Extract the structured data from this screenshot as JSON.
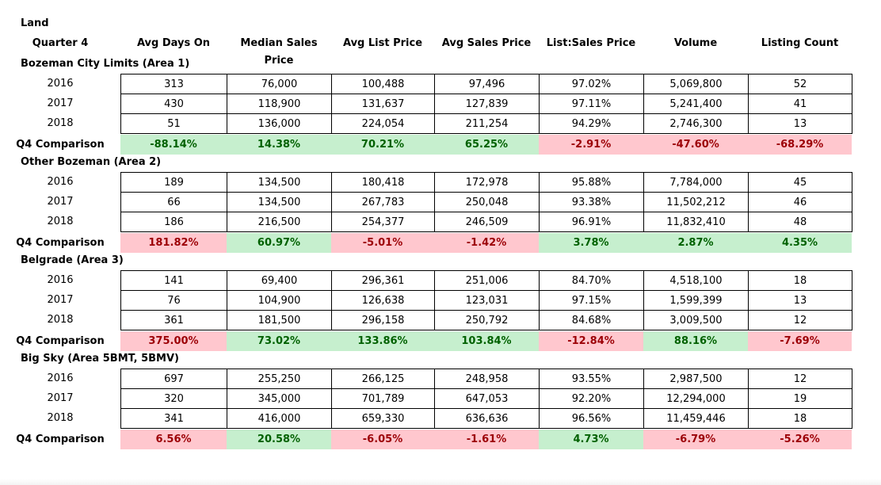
{
  "title": "Land",
  "columns": [
    "Quarter 4",
    "Avg Days On",
    "Median Sales Price",
    "Avg List Price",
    "Avg Sales Price",
    "List:Sales Price",
    "Volume",
    "Listing Count"
  ],
  "comparison_label": "Q4 Comparison",
  "sections": [
    {
      "name": "Bozeman City Limits (Area 1)",
      "rows": [
        {
          "year": "2016",
          "values": [
            "313",
            "76,000",
            "100,488",
            "97,496",
            "97.02%",
            "5,069,800",
            "52"
          ]
        },
        {
          "year": "2017",
          "values": [
            "430",
            "118,900",
            "131,637",
            "127,839",
            "97.11%",
            "5,241,400",
            "41"
          ]
        },
        {
          "year": "2018",
          "values": [
            "51",
            "136,000",
            "224,054",
            "211,254",
            "94.29%",
            "2,746,300",
            "13"
          ]
        }
      ],
      "comparison": [
        {
          "value": "-88.14%",
          "status": "positive"
        },
        {
          "value": "14.38%",
          "status": "positive"
        },
        {
          "value": "70.21%",
          "status": "positive"
        },
        {
          "value": "65.25%",
          "status": "positive"
        },
        {
          "value": "-2.91%",
          "status": "negative"
        },
        {
          "value": "-47.60%",
          "status": "negative"
        },
        {
          "value": "-68.29%",
          "status": "negative"
        }
      ]
    },
    {
      "name": "Other Bozeman (Area 2)",
      "rows": [
        {
          "year": "2016",
          "values": [
            "189",
            "134,500",
            "180,418",
            "172,978",
            "95.88%",
            "7,784,000",
            "45"
          ]
        },
        {
          "year": "2017",
          "values": [
            "66",
            "134,500",
            "267,783",
            "250,048",
            "93.38%",
            "11,502,212",
            "46"
          ]
        },
        {
          "year": "2018",
          "values": [
            "186",
            "216,500",
            "254,377",
            "246,509",
            "96.91%",
            "11,832,410",
            "48"
          ]
        }
      ],
      "comparison": [
        {
          "value": "181.82%",
          "status": "negative"
        },
        {
          "value": "60.97%",
          "status": "positive"
        },
        {
          "value": "-5.01%",
          "status": "negative"
        },
        {
          "value": "-1.42%",
          "status": "negative"
        },
        {
          "value": "3.78%",
          "status": "positive"
        },
        {
          "value": "2.87%",
          "status": "positive"
        },
        {
          "value": "4.35%",
          "status": "positive"
        }
      ]
    },
    {
      "name": "Belgrade (Area 3)",
      "rows": [
        {
          "year": "2016",
          "values": [
            "141",
            "69,400",
            "296,361",
            "251,006",
            "84.70%",
            "4,518,100",
            "18"
          ]
        },
        {
          "year": "2017",
          "values": [
            "76",
            "104,900",
            "126,638",
            "123,031",
            "97.15%",
            "1,599,399",
            "13"
          ]
        },
        {
          "year": "2018",
          "values": [
            "361",
            "181,500",
            "296,158",
            "250,792",
            "84.68%",
            "3,009,500",
            "12"
          ]
        }
      ],
      "comparison": [
        {
          "value": "375.00%",
          "status": "negative"
        },
        {
          "value": "73.02%",
          "status": "positive"
        },
        {
          "value": "133.86%",
          "status": "positive"
        },
        {
          "value": "103.84%",
          "status": "positive"
        },
        {
          "value": "-12.84%",
          "status": "negative"
        },
        {
          "value": "88.16%",
          "status": "positive"
        },
        {
          "value": "-7.69%",
          "status": "negative"
        }
      ]
    },
    {
      "name": "Big Sky (Area 5BMT, 5BMV)",
      "rows": [
        {
          "year": "2016",
          "values": [
            "697",
            "255,250",
            "266,125",
            "248,958",
            "93.55%",
            "2,987,500",
            "12"
          ]
        },
        {
          "year": "2017",
          "values": [
            "320",
            "345,000",
            "701,789",
            "647,053",
            "92.20%",
            "12,294,000",
            "19"
          ]
        },
        {
          "year": "2018",
          "values": [
            "341",
            "416,000",
            "659,330",
            "636,636",
            "96.56%",
            "11,459,446",
            "18"
          ]
        }
      ],
      "comparison": [
        {
          "value": "6.56%",
          "status": "negative"
        },
        {
          "value": "20.58%",
          "status": "positive"
        },
        {
          "value": "-6.05%",
          "status": "negative"
        },
        {
          "value": "-1.61%",
          "status": "negative"
        },
        {
          "value": "4.73%",
          "status": "positive"
        },
        {
          "value": "-6.79%",
          "status": "negative"
        },
        {
          "value": "-5.26%",
          "status": "negative"
        }
      ]
    }
  ]
}
